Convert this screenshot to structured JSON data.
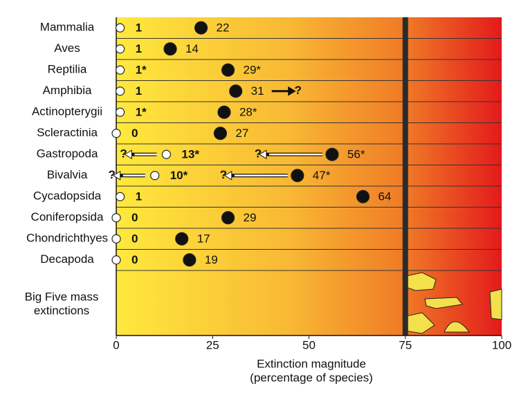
{
  "chart_data": {
    "type": "dot",
    "categories": [
      "Mammalia",
      "Aves",
      "Reptilia",
      "Amphibia",
      "Actinopterygii",
      "Scleractinia",
      "Gastropoda",
      "Bivalvia",
      "Cycadopsida",
      "Coniferopsida",
      "Chondrichthyes",
      "Decapoda"
    ],
    "series": [
      {
        "color": "#ffffff",
        "values": [
          1,
          1,
          1,
          1,
          1,
          0,
          13,
          10,
          1,
          0,
          0,
          0
        ],
        "value_labels": [
          "1",
          "1",
          "1*",
          "1",
          "1*",
          "0",
          "13*",
          "10*",
          "1",
          "0",
          "0",
          "0"
        ],
        "arrow_labels": [
          null,
          null,
          null,
          null,
          null,
          null,
          {
            "text": "?",
            "direction": "left"
          },
          {
            "text": "?",
            "direction": "left"
          },
          null,
          null,
          null,
          null
        ]
      },
      {
        "color": "#111111",
        "values": [
          22,
          14,
          29,
          31,
          28,
          27,
          56,
          47,
          64,
          29,
          17,
          19
        ],
        "value_labels": [
          "22",
          "14",
          "29*",
          "31",
          "28*",
          "27",
          "56*",
          "47*",
          "64",
          "29",
          "17",
          "19"
        ],
        "arrow_labels": [
          null,
          null,
          null,
          {
            "text": "?",
            "direction": "right"
          },
          null,
          null,
          {
            "text": "?",
            "direction": "left"
          },
          {
            "text": "?",
            "direction": "left"
          },
          null,
          null,
          null,
          null
        ]
      }
    ],
    "mass_extinction_label": [
      "Big Five mass",
      "extinctions"
    ],
    "threshold": 75,
    "xlim": [
      0,
      100
    ],
    "xticks": [
      0,
      25,
      50,
      75,
      100
    ],
    "xlabel": [
      "Extinction magnitude",
      "(percentage of species)"
    ]
  }
}
